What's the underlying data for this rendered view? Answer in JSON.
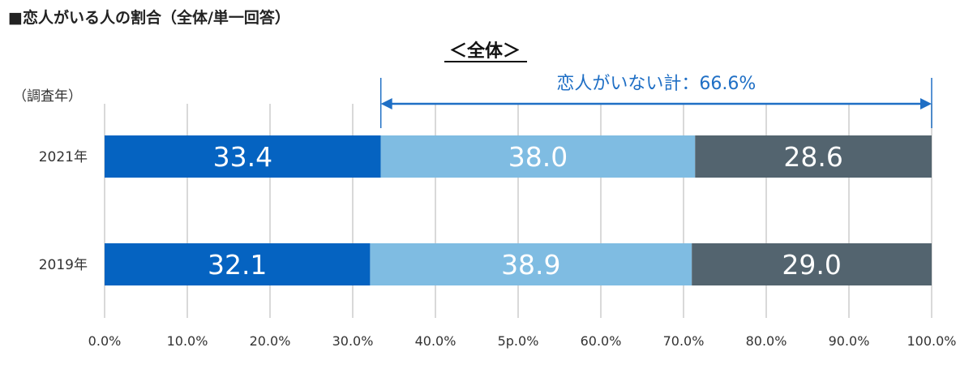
{
  "chart_data": {
    "type": "bar",
    "stacked": true,
    "orientation": "horizontal",
    "title": "■恋人がいる人の割合（全体/単一回答）",
    "subtitle": "＜全体＞",
    "ylabel": "（調査年）",
    "categories": [
      "2021年",
      "2019年"
    ],
    "series": [
      {
        "values": [
          33.4,
          32.1
        ],
        "color": "#0563c1"
      },
      {
        "values": [
          38.0,
          38.9
        ],
        "color": "#7fbce2"
      },
      {
        "values": [
          28.6,
          29.0
        ],
        "color": "#53646f"
      }
    ],
    "data_labels": [
      [
        "33.4",
        "38.0",
        "28.6"
      ],
      [
        "32.1",
        "38.9",
        "29.0"
      ]
    ],
    "xlim": [
      0,
      100
    ],
    "xticks": [
      0,
      10,
      20,
      30,
      40,
      50,
      60,
      70,
      80,
      90,
      100
    ],
    "xtick_labels": [
      "0.0%",
      "10.0%",
      "20.0%",
      "30.0%",
      "40.0%",
      "5p.0%",
      "60.0%",
      "70.0%",
      "80.0%",
      "90.0%",
      "100.0%"
    ],
    "grid": true,
    "annotation": {
      "text": "恋人がいない計：66.6%",
      "from": 33.4,
      "to": 100,
      "color": "#1f6fc5"
    }
  }
}
